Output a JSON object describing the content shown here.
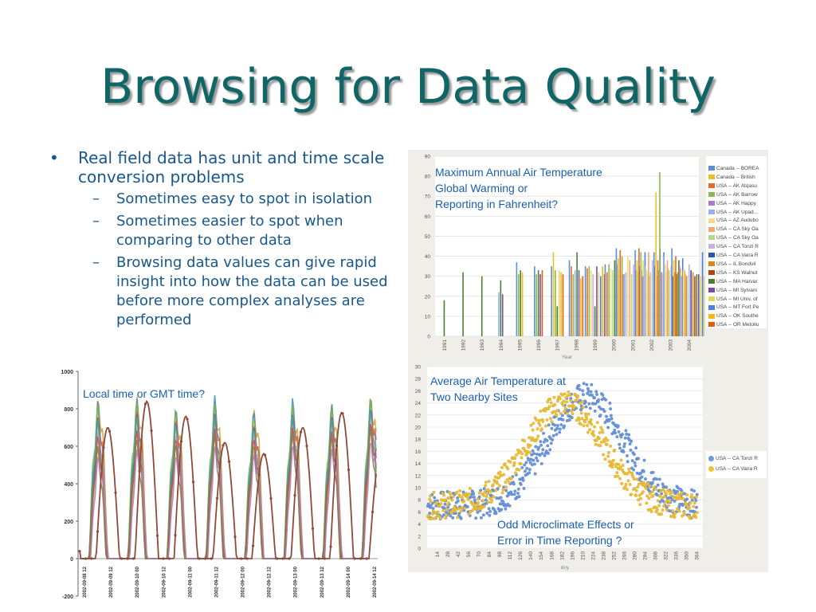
{
  "slide": {
    "title": "Browsing for Data Quality",
    "bullet_main": "Real field data has unit and time scale conversion problems",
    "sub_bullets": [
      "Sometimes easy to spot in isolation",
      "Sometimes easier to spot when comparing to other data",
      "Browsing data values can give rapid insight into how the data can be used before more complex analyses are performed"
    ],
    "bullet_symbol": "•",
    "dash_symbol": "–"
  },
  "annotations": {
    "max_temp": [
      "Maximum Annual Air Temperature",
      "Global Warming or",
      "Reporting in Fahrenheit?"
    ],
    "avg_temp": [
      "Average Air Temperature at",
      "Two Nearby Sites"
    ],
    "odd": [
      "Odd Microclimate Effects or",
      "Error in Time Reporting ?"
    ],
    "time": "Local time or GMT time?"
  },
  "chart_data": [
    {
      "type": "bar",
      "xlabel": "Year",
      "ylim": [
        0,
        90
      ],
      "yticks": [
        0,
        10,
        20,
        30,
        40,
        50,
        60,
        70,
        80,
        90
      ],
      "categories": [
        "1991",
        "1992",
        "1993",
        "1994",
        "1995",
        "1996",
        "1997",
        "1998",
        "1999",
        "2000",
        "2001",
        "2002",
        "2003",
        "2004"
      ],
      "legend": [
        "Canada -- BOREA",
        "Canada -- British",
        "USA -- AK Atqasu",
        "USA -- AK Barrow",
        "USA -- AK Happy",
        "USA -- AK Upad...",
        "USA -- AZ Audubo",
        "USA -- CA Sky Oa",
        "USA -- CA Sky Oa",
        "USA -- CA Tonzi R",
        "USA -- CA Vaira R",
        "USA -- IL Bondvil",
        "USA -- KS Walnut",
        "USA -- MA Harvar",
        "USA -- MI Sylvani",
        "USA -- MI Univ. of",
        "USA -- MT Fort Pe",
        "USA -- OK Southe",
        "USA -- OR Metoliu"
      ],
      "colors": [
        "#5b8fd6",
        "#f0c020",
        "#e86a28",
        "#8cb850",
        "#a67cc8",
        "#8fb4e6",
        "#f6dc86",
        "#f2a86e",
        "#b4d890",
        "#caaede",
        "#2a58b8",
        "#d88818",
        "#b84210",
        "#4a8030",
        "#7a4ea8",
        "#e0d860",
        "#4a80e0",
        "#f8b818",
        "#e06010"
      ],
      "values": [
        [
          null,
          null,
          null,
          null,
          null,
          null,
          null,
          null,
          null,
          null,
          null,
          null,
          null,
          18,
          null,
          null,
          null,
          null,
          null
        ],
        [
          null,
          null,
          null,
          null,
          null,
          null,
          null,
          null,
          null,
          null,
          null,
          null,
          null,
          32,
          null,
          null,
          null,
          null,
          null
        ],
        [
          null,
          null,
          null,
          null,
          null,
          null,
          null,
          null,
          null,
          null,
          null,
          null,
          null,
          30,
          null,
          null,
          null,
          null,
          null
        ],
        [
          null,
          null,
          null,
          null,
          null,
          22,
          null,
          null,
          null,
          null,
          null,
          null,
          null,
          28,
          21,
          null,
          null,
          null,
          null
        ],
        [
          37,
          null,
          null,
          31,
          null,
          null,
          null,
          null,
          null,
          null,
          null,
          null,
          null,
          33,
          null,
          null,
          null,
          32,
          null
        ],
        [
          35,
          null,
          null,
          31,
          null,
          null,
          null,
          null,
          null,
          null,
          null,
          null,
          null,
          33,
          31,
          null,
          null,
          null,
          33
        ],
        [
          35,
          42,
          null,
          33,
          null,
          null,
          null,
          null,
          null,
          null,
          null,
          null,
          null,
          15,
          null,
          33,
          null,
          32,
          31
        ],
        [
          38,
          null,
          35,
          31,
          null,
          33,
          null,
          null,
          null,
          null,
          null,
          null,
          null,
          42,
          33,
          null,
          null,
          29,
          30
        ],
        [
          35,
          null,
          34,
          35,
          null,
          null,
          33,
          null,
          null,
          31,
          null,
          null,
          null,
          15,
          35,
          32,
          30,
          35,
          31
        ],
        [
          36,
          null,
          32,
          36,
          null,
          null,
          34,
          null,
          33,
          null,
          null,
          null,
          null,
          38,
          36,
          33,
          null,
          33,
          31
        ],
        [
          44,
          39,
          43,
          40,
          31,
          32,
          40,
          38,
          31,
          36,
          33,
          32,
          35,
          null,
          33,
          38,
          42,
          32,
          30
        ],
        [
          43,
          38,
          44,
          42,
          30,
          35,
          33,
          42,
          32,
          38,
          35,
          30,
          33,
          null,
          44,
          31,
          42,
          32,
          34
        ],
        [
          42,
          72,
          38,
          82,
          32,
          40,
          36,
          38,
          33,
          35,
          30,
          32,
          31,
          38,
          null,
          34,
          39,
          33,
          30
        ],
        [
          44,
          38,
          40,
          32,
          35,
          30,
          33,
          31,
          30,
          36,
          33,
          32,
          30,
          31,
          31,
          30,
          42,
          30,
          30
        ]
      ]
    },
    {
      "type": "scatter",
      "xlabel": "doy",
      "xlim": [
        0,
        372
      ],
      "ylim": [
        0,
        30
      ],
      "yticks": [
        0,
        2,
        4,
        6,
        8,
        10,
        12,
        14,
        16,
        18,
        20,
        22,
        24,
        26,
        28,
        30
      ],
      "xticks": [
        14,
        28,
        42,
        56,
        70,
        84,
        98,
        112,
        126,
        140,
        154,
        168,
        182,
        196,
        210,
        224,
        238,
        252,
        266,
        280,
        294,
        308,
        322,
        336,
        350,
        364
      ],
      "series": [
        {
          "name": "USA -- CA Tonzi R",
          "color": "#6d98de",
          "peak_day": 214,
          "low": 7,
          "high": 25,
          "noise": 2.4
        },
        {
          "name": "USA -- CA Vaira R",
          "color": "#efc13a",
          "peak_day": 186,
          "low": 7,
          "high": 24,
          "noise": 2.2
        }
      ]
    },
    {
      "type": "line",
      "ylim": [
        -200,
        1000
      ],
      "yticks": [
        -200,
        0,
        200,
        400,
        600,
        800,
        1000
      ],
      "xticks": [
        "2002-09-08 12",
        "2002-09-09 12",
        "2002-09-10 00",
        "2002-09-10 12",
        "2002-09-11 00",
        "2002-09-11 12",
        "2002-09-12 00",
        "2002-09-12 12",
        "2002-09-13 00",
        "2002-09-13 12",
        "2002-09-14 00",
        "2002-09-14 12"
      ],
      "series": [
        {
          "color": "#d8a030",
          "peaks": [
            880,
            890,
            820,
            870,
            830,
            850,
            860,
            900
          ]
        },
        {
          "color": "#3f8fb8",
          "peaks": [
            850,
            860,
            810,
            880,
            800,
            870,
            840,
            880
          ]
        },
        {
          "color": "#7ab648",
          "peaks": [
            820,
            840,
            790,
            830,
            760,
            820,
            810,
            860
          ]
        },
        {
          "color": "#e0672a",
          "peaks": [
            790,
            810,
            770,
            800,
            740,
            800,
            790,
            840
          ]
        },
        {
          "color": "#6c5fa8",
          "peaks": [
            760,
            780,
            740,
            780,
            720,
            780,
            770,
            820
          ]
        },
        {
          "color": "#45a8a0",
          "peaks": [
            740,
            760,
            720,
            760,
            700,
            760,
            750,
            800
          ]
        },
        {
          "color": "#a8a8a8",
          "peaks": [
            700,
            720,
            690,
            730,
            680,
            740,
            720,
            770
          ]
        },
        {
          "color": "#c84a4a",
          "peaks": [
            660,
            690,
            650,
            700,
            650,
            710,
            690,
            740
          ]
        },
        {
          "color": "#8a7a3a",
          "peaks": [
            600,
            640,
            610,
            660,
            610,
            670,
            650,
            700
          ]
        },
        {
          "color": "#b07ab0",
          "peaks": [
            560,
            600,
            570,
            620,
            580,
            630,
            610,
            660
          ]
        }
      ],
      "offset_series": {
        "color": "#8e4a3a",
        "peaks": [
          380,
          700,
          840,
          760,
          620,
          560,
          700,
          780,
          560
        ]
      }
    }
  ]
}
